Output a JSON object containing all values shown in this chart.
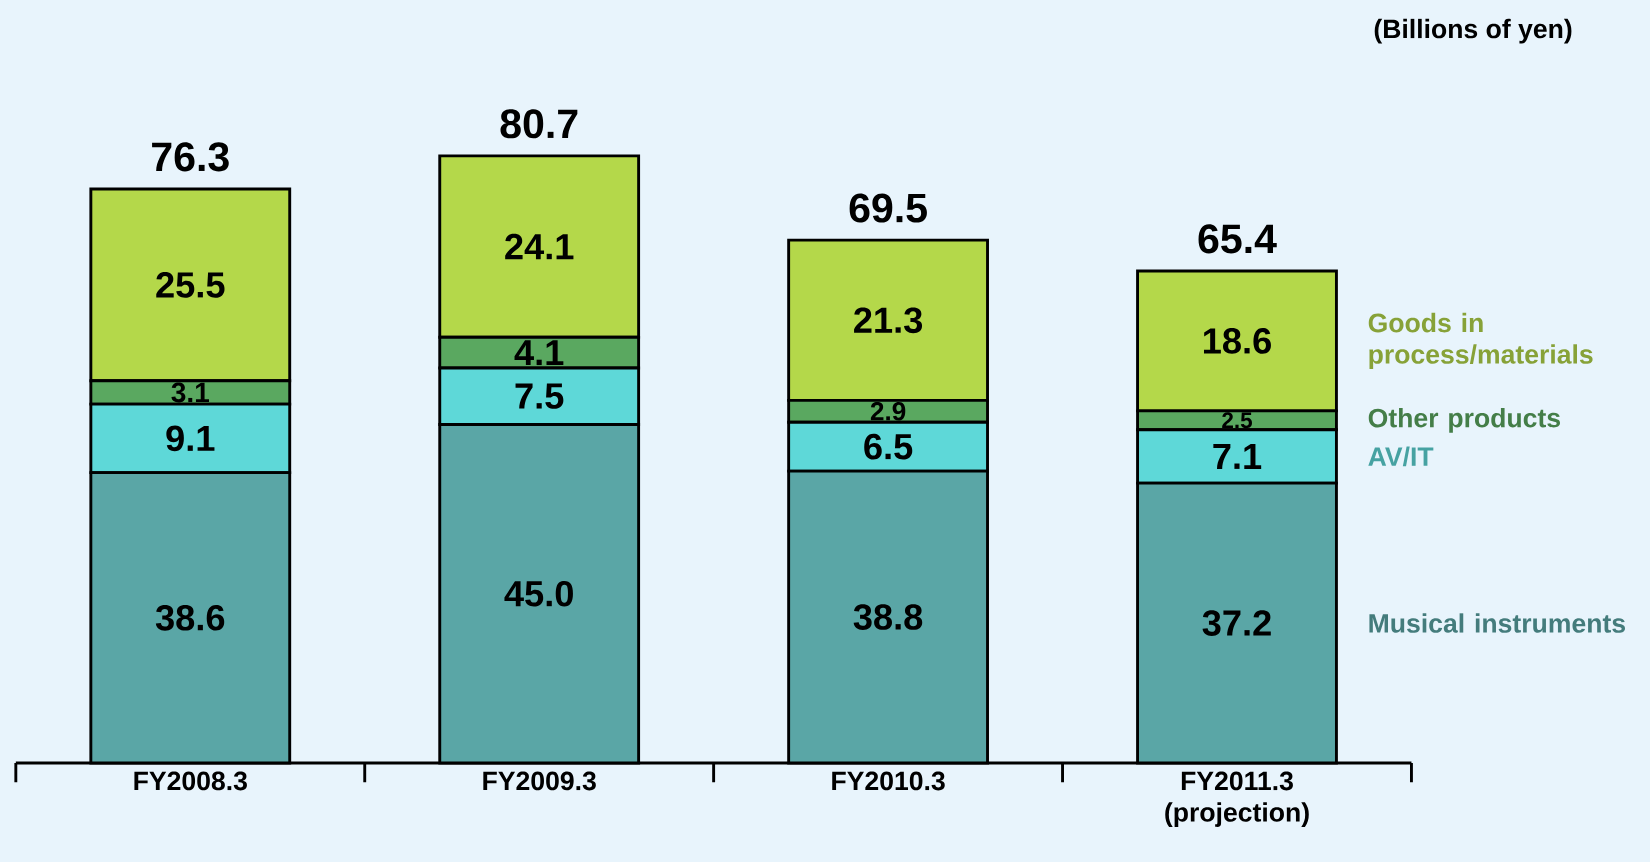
{
  "chart_data": {
    "type": "bar",
    "stacked": true,
    "categories": [
      "FY2008.3",
      "FY2009.3",
      "FY2010.3",
      "FY2011.3 (projection)"
    ],
    "series": [
      {
        "name": "Musical instruments",
        "color": "#5aa6a6",
        "values": [
          38.6,
          45.0,
          38.8,
          37.2
        ],
        "value_labels": [
          "38.6",
          "45.0",
          "38.8",
          "37.2"
        ]
      },
      {
        "name": "AV/IT",
        "color": "#5ed8d8",
        "values": [
          9.1,
          7.5,
          6.5,
          7.1
        ],
        "value_labels": [
          "9.1",
          "7.5",
          "6.5",
          "7.1"
        ]
      },
      {
        "name": "Other products",
        "color": "#5aa860",
        "values": [
          3.1,
          4.1,
          2.9,
          2.5
        ],
        "value_labels": [
          "3.1",
          "4.1",
          "2.9",
          "2.5"
        ]
      },
      {
        "name": "Goods in process/materials",
        "color": "#b4d84a",
        "values": [
          25.5,
          24.1,
          21.3,
          18.6
        ],
        "value_labels": [
          "25.5",
          "24.1",
          "21.3",
          "18.6"
        ]
      }
    ],
    "totals": [
      "76.3",
      "80.7",
      "69.5",
      "65.4"
    ],
    "annotations": [
      "(Billions of yen)"
    ]
  }
}
